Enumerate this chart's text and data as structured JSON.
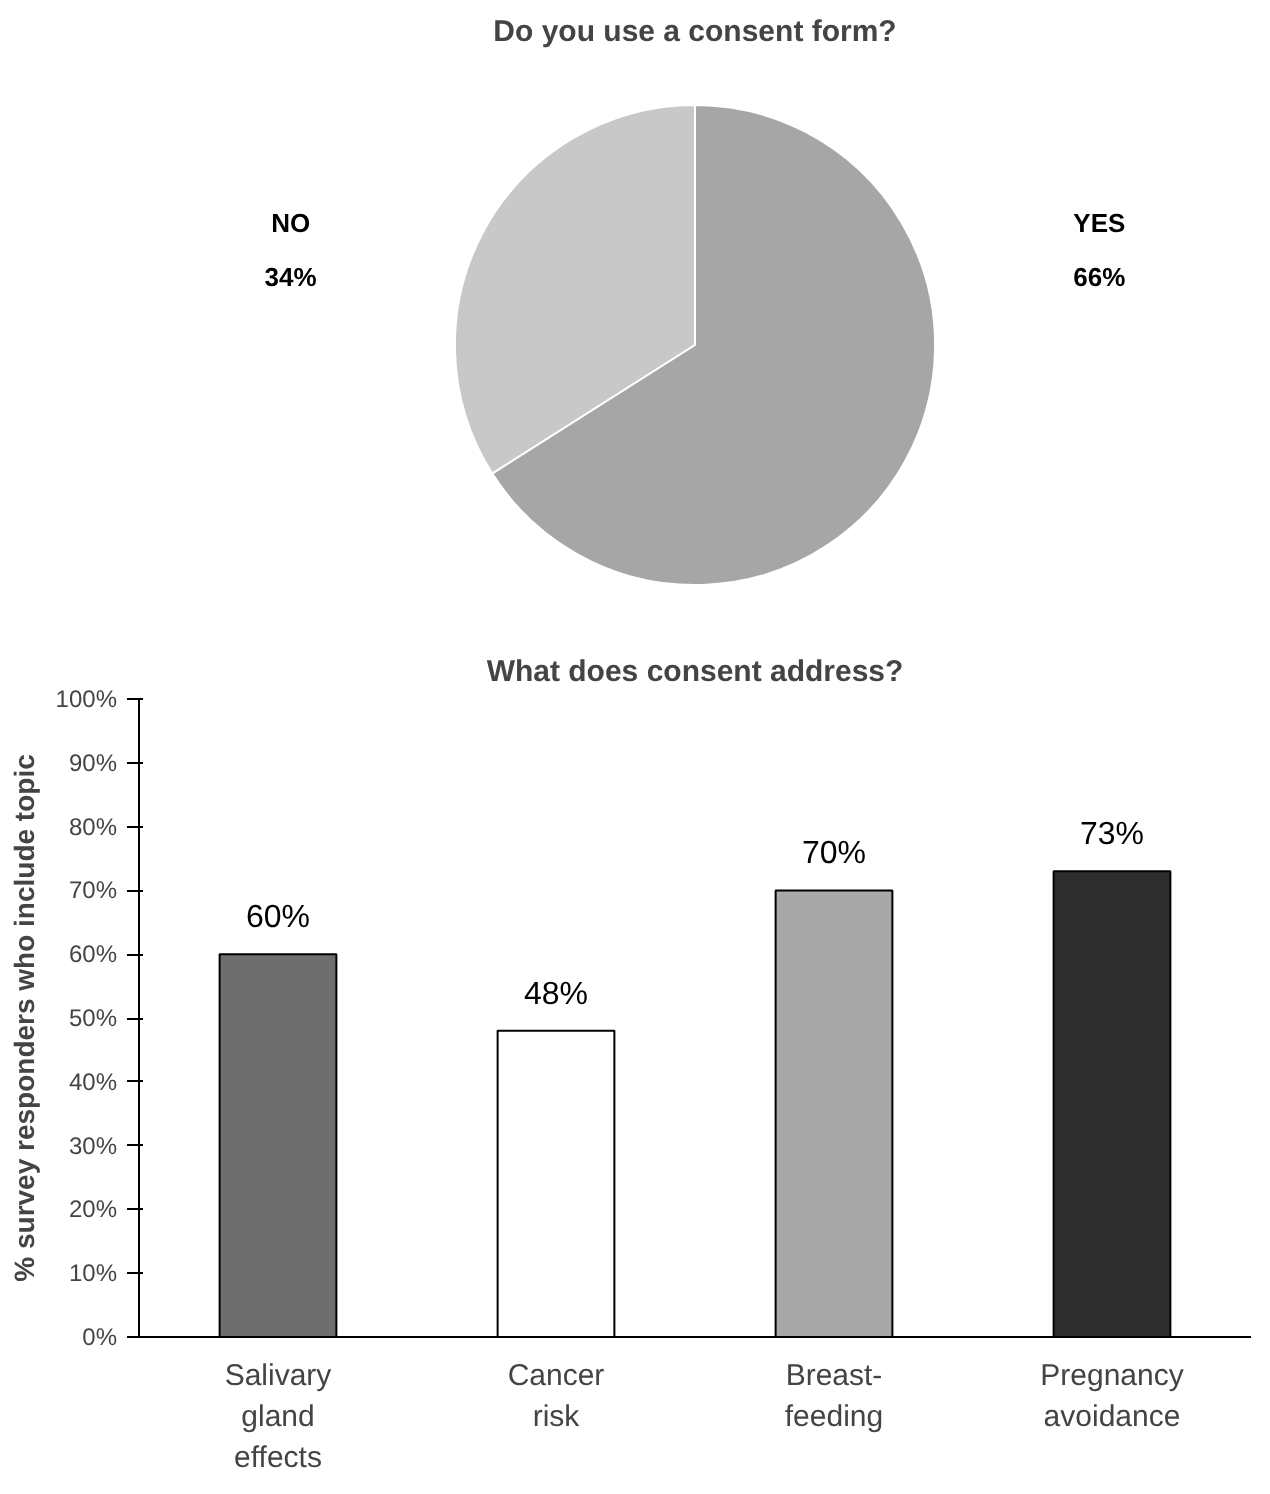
{
  "chart_data": [
    {
      "type": "pie",
      "title": "Do you use a consent form?",
      "categories": [
        "NO",
        "YES"
      ],
      "values": [
        34,
        66
      ],
      "colors": [
        "#c8c8c8",
        "#a6a6a6"
      ],
      "value_labels": [
        "34%",
        "66%"
      ]
    },
    {
      "type": "bar",
      "title": "What does consent address?",
      "ylabel": "% survey responders who include topic",
      "categories": [
        "Salivary gland effects",
        "Cancer risk",
        "Breast-feeding",
        "Pregnancy avoidance"
      ],
      "values": [
        60,
        48,
        70,
        73
      ],
      "colors": [
        "#6e6e6e",
        "#ffffff",
        "#a8a8a8",
        "#2e2e2e"
      ],
      "value_labels": [
        "60%",
        "48%",
        "70%",
        "73%"
      ],
      "ylim": [
        0,
        100
      ],
      "yticks": [
        {
          "value": 0,
          "label": "0%"
        },
        {
          "value": 10,
          "label": "10%"
        },
        {
          "value": 20,
          "label": "20%"
        },
        {
          "value": 30,
          "label": "30%"
        },
        {
          "value": 40,
          "label": "40%"
        },
        {
          "value": 50,
          "label": "50%"
        },
        {
          "value": 60,
          "label": "60%"
        },
        {
          "value": 70,
          "label": "70%"
        },
        {
          "value": 80,
          "label": "80%"
        },
        {
          "value": 90,
          "label": "90%"
        },
        {
          "value": 100,
          "label": "100%"
        }
      ],
      "grid": false
    }
  ]
}
